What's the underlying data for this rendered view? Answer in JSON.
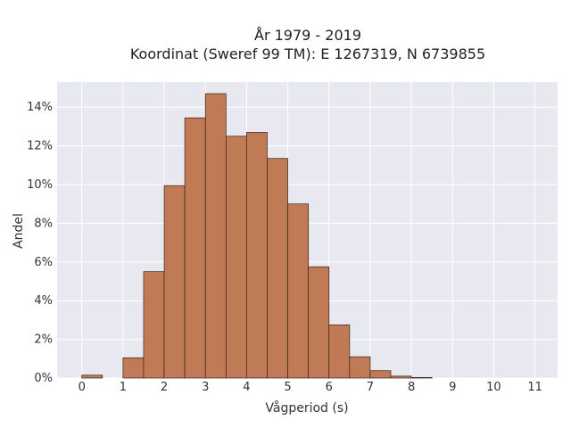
{
  "chart_data": {
    "type": "bar",
    "title_line1": "År 1979 - 2019",
    "title_line2": "Koordinat (Sweref 99 TM): E 1267319, N 6739855",
    "xlabel": "Vågperiod (s)",
    "ylabel": "Andel",
    "xlim": [
      -0.6,
      11.55
    ],
    "ylim": [
      0,
      15.3
    ],
    "x_ticks": [
      0,
      1,
      2,
      3,
      4,
      5,
      6,
      7,
      8,
      9,
      10,
      11
    ],
    "y_ticks": [
      0,
      2,
      4,
      6,
      8,
      10,
      12,
      14
    ],
    "y_tick_suffix": "%",
    "bin_width": 0.5,
    "bins": [
      {
        "x0": 0.0,
        "value": 0.15
      },
      {
        "x0": 0.5,
        "value": 0.0
      },
      {
        "x0": 1.0,
        "value": 1.05
      },
      {
        "x0": 1.5,
        "value": 5.5
      },
      {
        "x0": 2.0,
        "value": 9.95
      },
      {
        "x0": 2.5,
        "value": 13.45
      },
      {
        "x0": 3.0,
        "value": 14.7
      },
      {
        "x0": 3.5,
        "value": 12.5
      },
      {
        "x0": 4.0,
        "value": 12.7
      },
      {
        "x0": 4.5,
        "value": 11.35
      },
      {
        "x0": 5.0,
        "value": 9.0
      },
      {
        "x0": 5.5,
        "value": 5.75
      },
      {
        "x0": 6.0,
        "value": 2.75
      },
      {
        "x0": 6.5,
        "value": 1.1
      },
      {
        "x0": 7.0,
        "value": 0.38
      },
      {
        "x0": 7.5,
        "value": 0.1
      },
      {
        "x0": 8.0,
        "value": 0.03
      }
    ],
    "bar_color": "#c07a56",
    "bar_edge_color": "#3a2418",
    "plot_background": "#e8e8f1",
    "grid": true,
    "grid_color": "#ffffff"
  }
}
